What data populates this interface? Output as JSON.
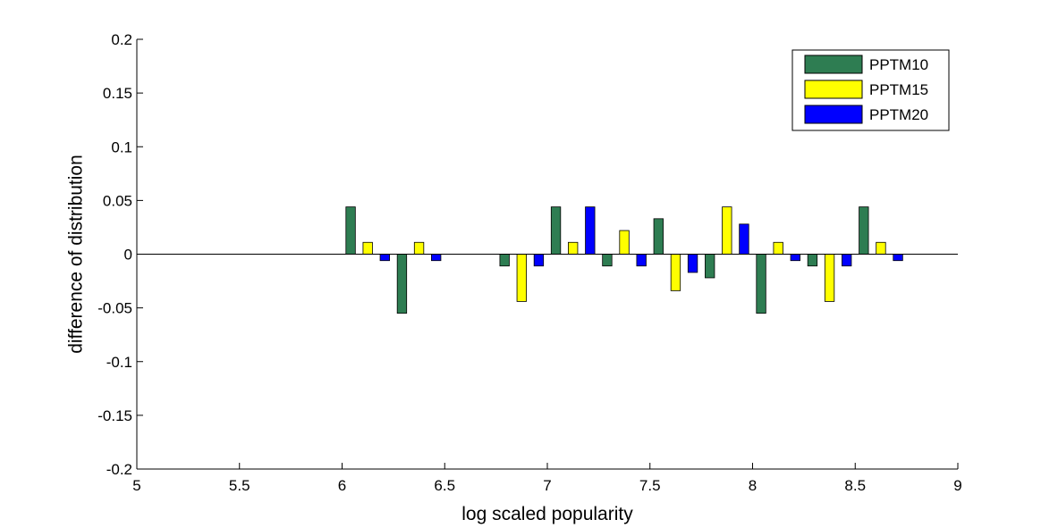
{
  "chart_data": {
    "type": "bar",
    "title": "",
    "xlabel": "log scaled popularity",
    "ylabel": "difference of distribution",
    "xlim": [
      5,
      9
    ],
    "ylim": [
      -0.2,
      0.2
    ],
    "xticks": [
      "5",
      "5.5",
      "6",
      "6.5",
      "7",
      "7.5",
      "8",
      "8.5",
      "9"
    ],
    "yticks": [
      "0.2",
      "0.15",
      "0.1",
      "0.05",
      "0",
      "-0.05",
      "-0.1",
      "-0.15",
      "-0.2"
    ],
    "x": [
      6.125,
      6.375,
      6.875,
      7.125,
      7.375,
      7.625,
      7.875,
      8.125,
      8.375,
      8.625
    ],
    "grid": false,
    "legend_position": "top-right",
    "series": [
      {
        "name": "PPTM10",
        "color": "#2e7d52",
        "values": [
          0.044,
          -0.055,
          -0.011,
          0.044,
          -0.011,
          0.033,
          -0.022,
          -0.055,
          -0.011,
          0.044
        ]
      },
      {
        "name": "PPTM15",
        "color": "#ffff00",
        "values": [
          0.011,
          0.011,
          -0.044,
          0.011,
          0.022,
          -0.034,
          0.044,
          0.011,
          -0.044,
          0.011
        ]
      },
      {
        "name": "PPTM20",
        "color": "#0000ff",
        "values": [
          -0.006,
          -0.006,
          -0.011,
          0.044,
          -0.011,
          -0.017,
          0.028,
          -0.006,
          -0.011,
          -0.006
        ]
      }
    ]
  }
}
